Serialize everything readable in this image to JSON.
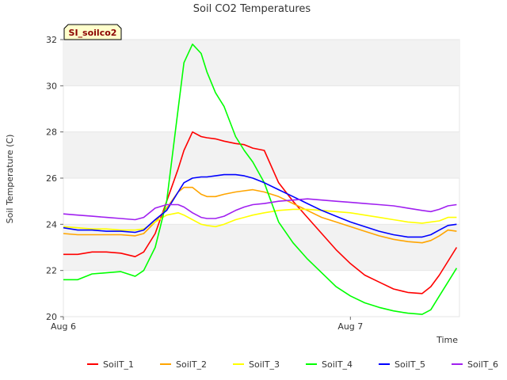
{
  "chart_data": {
    "type": "line",
    "title": "Soil CO2 Temperatures",
    "xlabel": "Time",
    "ylabel": "Soil Temperature (C)",
    "tag": "SI_soilco2",
    "ylim": [
      20,
      32
    ],
    "xlim": [
      0,
      1.38
    ],
    "yticks": [
      20,
      22,
      24,
      26,
      28,
      30,
      32
    ],
    "xticks": [
      {
        "value": 0,
        "label": "Aug 6"
      },
      {
        "value": 1,
        "label": "Aug 7"
      }
    ],
    "grid": "horizontal bands",
    "legend_position": "bottom",
    "x": [
      0.0,
      0.05,
      0.1,
      0.15,
      0.2,
      0.25,
      0.28,
      0.32,
      0.36,
      0.4,
      0.42,
      0.45,
      0.48,
      0.5,
      0.53,
      0.56,
      0.6,
      0.63,
      0.66,
      0.7,
      0.75,
      0.8,
      0.85,
      0.9,
      0.95,
      1.0,
      1.05,
      1.1,
      1.15,
      1.2,
      1.25,
      1.28,
      1.31,
      1.34,
      1.37
    ],
    "series": [
      {
        "name": "SoilT_1",
        "color": "#ff0000",
        "values": [
          22.7,
          22.7,
          22.8,
          22.8,
          22.75,
          22.6,
          22.8,
          23.6,
          25.0,
          26.4,
          27.2,
          28.0,
          27.8,
          27.75,
          27.7,
          27.6,
          27.5,
          27.45,
          27.3,
          27.2,
          25.8,
          25.0,
          24.3,
          23.6,
          22.9,
          22.3,
          21.8,
          21.5,
          21.2,
          21.05,
          21.0,
          21.3,
          21.8,
          22.4,
          23.0
        ]
      },
      {
        "name": "SoilT_2",
        "color": "#ffa500",
        "values": [
          23.6,
          23.55,
          23.55,
          23.55,
          23.55,
          23.5,
          23.6,
          24.1,
          24.7,
          25.4,
          25.6,
          25.6,
          25.3,
          25.2,
          25.2,
          25.3,
          25.4,
          25.45,
          25.5,
          25.4,
          25.2,
          24.9,
          24.6,
          24.3,
          24.1,
          23.9,
          23.7,
          23.5,
          23.35,
          23.25,
          23.2,
          23.3,
          23.5,
          23.75,
          23.7
        ]
      },
      {
        "name": "SoilT_3",
        "color": "#ffff00",
        "values": [
          23.9,
          23.85,
          23.8,
          23.8,
          23.75,
          23.75,
          23.8,
          24.1,
          24.4,
          24.5,
          24.4,
          24.2,
          24.0,
          23.95,
          23.9,
          24.0,
          24.2,
          24.3,
          24.4,
          24.5,
          24.6,
          24.65,
          24.65,
          24.6,
          24.55,
          24.5,
          24.4,
          24.3,
          24.2,
          24.1,
          24.05,
          24.1,
          24.15,
          24.3,
          24.3
        ]
      },
      {
        "name": "SoilT_4",
        "color": "#00ff00",
        "values": [
          21.6,
          21.6,
          21.85,
          21.9,
          21.95,
          21.75,
          22.0,
          23.0,
          25.0,
          29.0,
          31.0,
          31.8,
          31.4,
          30.6,
          29.7,
          29.1,
          27.8,
          27.2,
          26.7,
          25.8,
          24.1,
          23.2,
          22.5,
          21.9,
          21.3,
          20.9,
          20.6,
          20.4,
          20.25,
          20.15,
          20.1,
          20.3,
          20.9,
          21.5,
          22.1
        ]
      },
      {
        "name": "SoilT_5",
        "color": "#0000ff",
        "values": [
          23.85,
          23.75,
          23.75,
          23.7,
          23.7,
          23.65,
          23.75,
          24.2,
          24.6,
          25.4,
          25.8,
          26.0,
          26.05,
          26.05,
          26.1,
          26.15,
          26.15,
          26.1,
          26.0,
          25.8,
          25.5,
          25.2,
          24.9,
          24.6,
          24.35,
          24.1,
          23.9,
          23.7,
          23.55,
          23.45,
          23.45,
          23.55,
          23.75,
          23.95,
          24.0
        ]
      },
      {
        "name": "SoilT_6",
        "color": "#a020f0",
        "values": [
          24.45,
          24.4,
          24.35,
          24.3,
          24.25,
          24.2,
          24.3,
          24.7,
          24.85,
          24.85,
          24.75,
          24.5,
          24.3,
          24.25,
          24.25,
          24.35,
          24.6,
          24.75,
          24.85,
          24.9,
          25.0,
          25.05,
          25.1,
          25.05,
          25.0,
          24.95,
          24.9,
          24.85,
          24.8,
          24.7,
          24.6,
          24.55,
          24.65,
          24.8,
          24.85
        ]
      }
    ]
  }
}
